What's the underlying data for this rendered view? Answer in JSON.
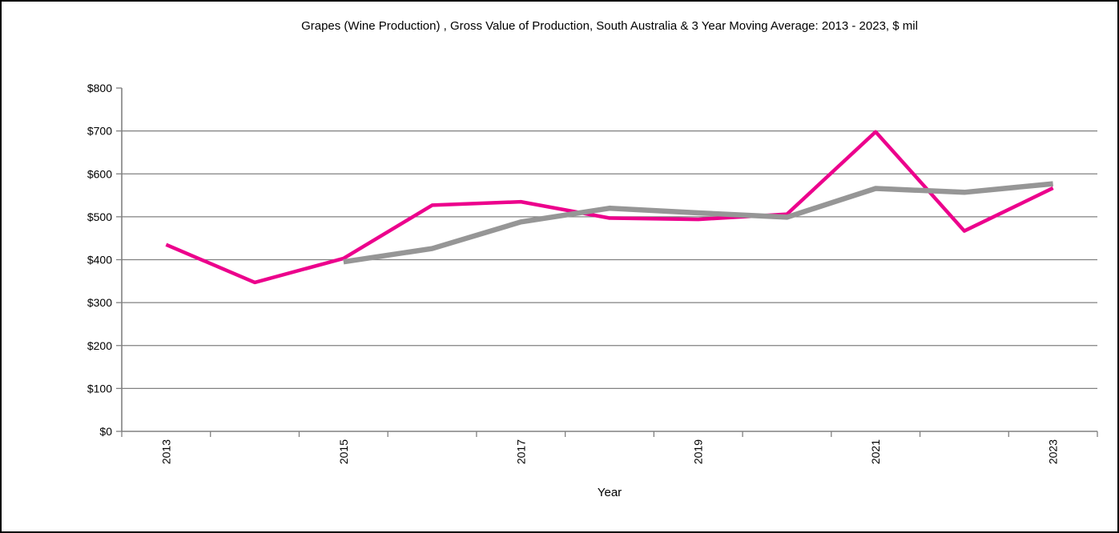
{
  "title": "Grapes (Wine Production) , Gross Value of Production, South Australia & 3 Year Moving Average: 2013 - 2023, $ mil",
  "chart_data": {
    "type": "line",
    "title": "Grapes (Wine Production) , Gross Value of Production, South Australia & 3 Year Moving Average: 2013 - 2023, $ mil",
    "xlabel": "Year",
    "ylabel": "",
    "categories": [
      2013,
      2014,
      2015,
      2016,
      2017,
      2018,
      2019,
      2020,
      2021,
      2022,
      2023
    ],
    "series": [
      {
        "name": "Gross Value of Production ($ mil)",
        "color": "#EC008C",
        "line_width": 4.5,
        "values": [
          435,
          347,
          403,
          527,
          535,
          497,
          494,
          506,
          698,
          467,
          567
        ]
      },
      {
        "name": "3 Year Moving Average",
        "color": "#969696",
        "line_width": 6.5,
        "values": [
          null,
          null,
          395,
          426,
          488,
          520,
          509,
          499,
          566,
          557,
          577
        ]
      }
    ],
    "ylim": [
      0,
      800
    ],
    "ytick_step": 100,
    "ytick_labels": [
      "$0",
      "$100",
      "$200",
      "$300",
      "$400",
      "$500",
      "$600",
      "$700",
      "$800"
    ],
    "xtick_labels": [
      "2013",
      "2015",
      "2017",
      "2019",
      "2021",
      "2023"
    ],
    "xtick_label_indices": [
      0,
      2,
      4,
      6,
      8,
      10
    ],
    "grid": true,
    "legend": "none",
    "axis_color": "#808080",
    "grid_color": "#808080",
    "text_color": "#000000",
    "tick_font_size": 14,
    "axis_title_font_size": 15
  }
}
